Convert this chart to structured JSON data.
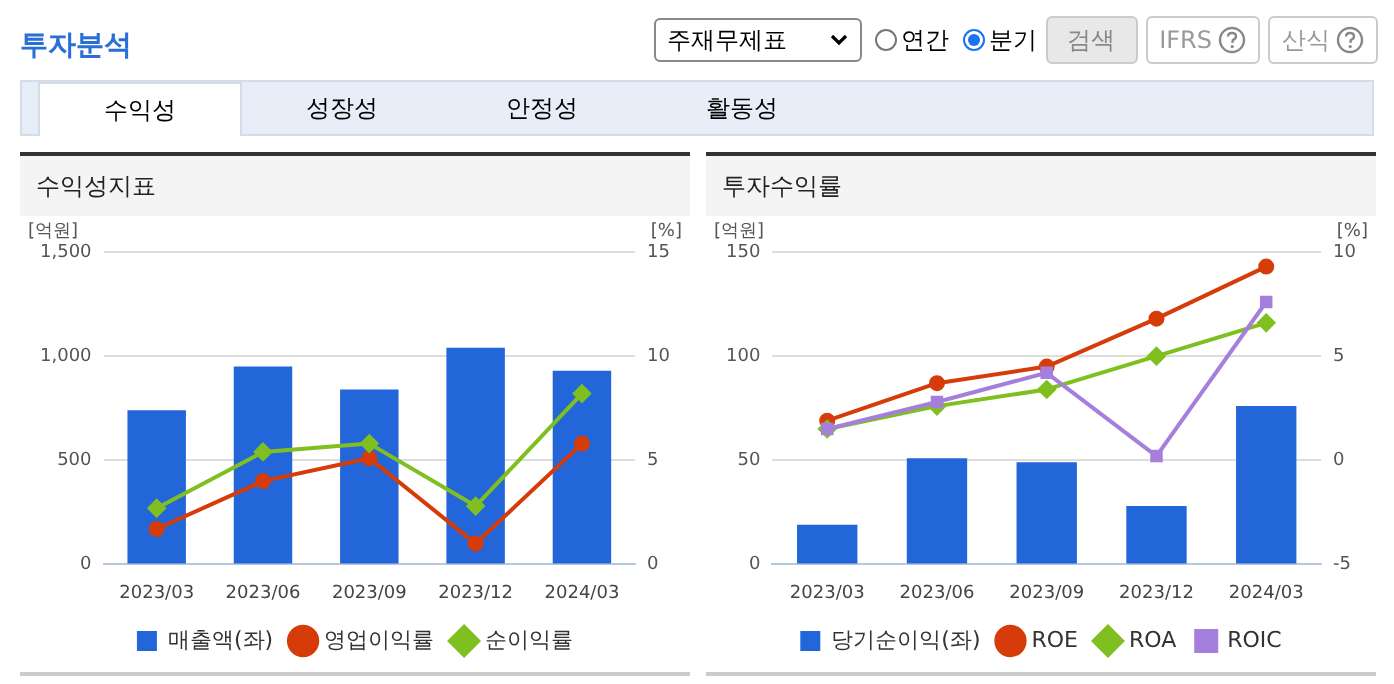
{
  "chart_data": [
    {
      "type": "other",
      "title": "투자분석",
      "annotations": [
        "주재무제표",
        "연간",
        "분기",
        "검색",
        "IFRS",
        "산식",
        "수익성",
        "성장성",
        "안정성",
        "활동성"
      ]
    },
    {
      "type": "bar",
      "title": "수익성지표",
      "ylabel": "[억원]",
      "y2label": "[%]",
      "categories": [
        "2023/03",
        "2023/06",
        "2023/09",
        "2023/12",
        "2024/03"
      ],
      "series": [
        {
          "name": "매출액(좌)",
          "color": "#2366d9",
          "values": [
            740,
            950,
            840,
            1040,
            930
          ]
        },
        {
          "name": "영업이익률",
          "type": "line",
          "axis": "y2",
          "marker": "circle",
          "color": "#d63c0a",
          "values": [
            1.7,
            4.0,
            5.1,
            1.0,
            5.8
          ]
        },
        {
          "name": "순이익률",
          "type": "line",
          "axis": "y2",
          "marker": "diamond",
          "color": "#7fbf1f",
          "values": [
            2.7,
            5.4,
            5.8,
            2.8,
            8.2
          ]
        }
      ],
      "ylim": [
        0,
        1500
      ],
      "yticks": [
        0,
        500,
        {
          "value": 1000,
          "label": "1,000"
        },
        {
          "value": 1500,
          "label": "1,500"
        }
      ],
      "y2lim": [
        0,
        15
      ],
      "y2ticks": [
        0,
        5,
        10,
        15
      ],
      "grid": "y",
      "legend": "bottom"
    },
    {
      "type": "bar",
      "title": "투자수익률",
      "ylabel": "[억원]",
      "y2label": "[%]",
      "categories": [
        "2023/03",
        "2023/06",
        "2023/09",
        "2023/12",
        "2024/03"
      ],
      "series": [
        {
          "name": "당기순이익(좌)",
          "color": "#2366d9",
          "values": [
            19,
            51,
            49,
            28,
            76
          ]
        },
        {
          "name": "ROE",
          "type": "line",
          "axis": "y2",
          "marker": "circle",
          "color": "#d63c0a",
          "values": [
            1.9,
            3.7,
            4.5,
            6.8,
            9.3
          ]
        },
        {
          "name": "ROA",
          "type": "line",
          "axis": "y2",
          "marker": "diamond",
          "color": "#7fbf1f",
          "values": [
            1.5,
            2.6,
            3.4,
            5.0,
            6.6
          ]
        },
        {
          "name": "ROIC",
          "type": "line",
          "axis": "y2",
          "marker": "square",
          "color": "#a57fdc",
          "values": [
            1.5,
            2.8,
            4.2,
            0.2,
            7.6
          ]
        }
      ],
      "ylim": [
        0,
        150
      ],
      "yticks": [
        0,
        50,
        100,
        150
      ],
      "y2lim": [
        -5,
        10
      ],
      "y2ticks": [
        -5,
        0,
        5,
        10
      ],
      "grid": "y",
      "legend": "bottom"
    }
  ]
}
